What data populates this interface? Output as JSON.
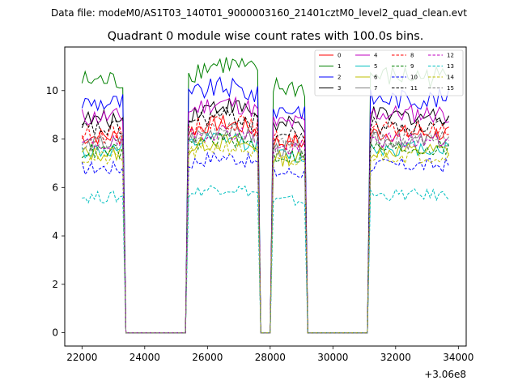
{
  "chart_data": {
    "type": "line",
    "suptitle": "Data file: modeM0/AS1T03_140T01_9000003160_21401cztM0_level2_quad_clean.evt",
    "title": "Quadrant 0 module wise count rates with 100.0s bins.",
    "xlabel": "",
    "ylabel": "",
    "offset_label": "+3.06e8",
    "xlim": [
      21450,
      34250
    ],
    "ylim": [
      -0.55,
      11.8
    ],
    "x_ticks": [
      22000,
      24000,
      26000,
      28000,
      30000,
      32000,
      34000
    ],
    "x_tick_labels": [
      "22000",
      "24000",
      "26000",
      "28000",
      "30000",
      "32000",
      "34000"
    ],
    "y_ticks": [
      0,
      2,
      4,
      6,
      8,
      10
    ],
    "y_tick_labels": [
      "0",
      "2",
      "4",
      "6",
      "8",
      "10"
    ],
    "legend_position": "top-right",
    "x_start": 22000,
    "bin_width": 100,
    "active_segments": [
      [
        22000,
        23300
      ],
      [
        25400,
        27600
      ],
      [
        28100,
        29100
      ],
      [
        31200,
        33700
      ]
    ],
    "series": [
      {
        "name": "0",
        "color": "#ff0000",
        "style": "solid",
        "level": 8.1
      },
      {
        "name": "1",
        "color": "#008000",
        "style": "solid",
        "level": 10.4
      },
      {
        "name": "2",
        "color": "#0000ff",
        "style": "solid",
        "level": 9.5
      },
      {
        "name": "3",
        "color": "#000000",
        "style": "solid",
        "level": 8.8
      },
      {
        "name": "4",
        "color": "#bf00bf",
        "style": "solid",
        "level": 8.9
      },
      {
        "name": "5",
        "color": "#00bfbf",
        "style": "solid",
        "level": 7.5
      },
      {
        "name": "6",
        "color": "#bfbf00",
        "style": "solid",
        "level": 7.4
      },
      {
        "name": "7",
        "color": "#808080",
        "style": "solid",
        "level": 7.8
      },
      {
        "name": "8",
        "color": "#ff0000",
        "style": "dashed",
        "level": 8.2
      },
      {
        "name": "9",
        "color": "#008000",
        "style": "dashed",
        "level": 7.5
      },
      {
        "name": "10",
        "color": "#0000ff",
        "style": "dashed",
        "level": 6.8
      },
      {
        "name": "11",
        "color": "#000000",
        "style": "dashed",
        "level": 8.4
      },
      {
        "name": "12",
        "color": "#bf00bf",
        "style": "dashed",
        "level": 7.8
      },
      {
        "name": "13",
        "color": "#00bfbf",
        "style": "dashed",
        "level": 5.6
      },
      {
        "name": "14",
        "color": "#bfbf00",
        "style": "dashed",
        "level": 7.2
      },
      {
        "name": "15",
        "color": "#808080",
        "style": "dashed",
        "level": 7.9
      }
    ]
  }
}
